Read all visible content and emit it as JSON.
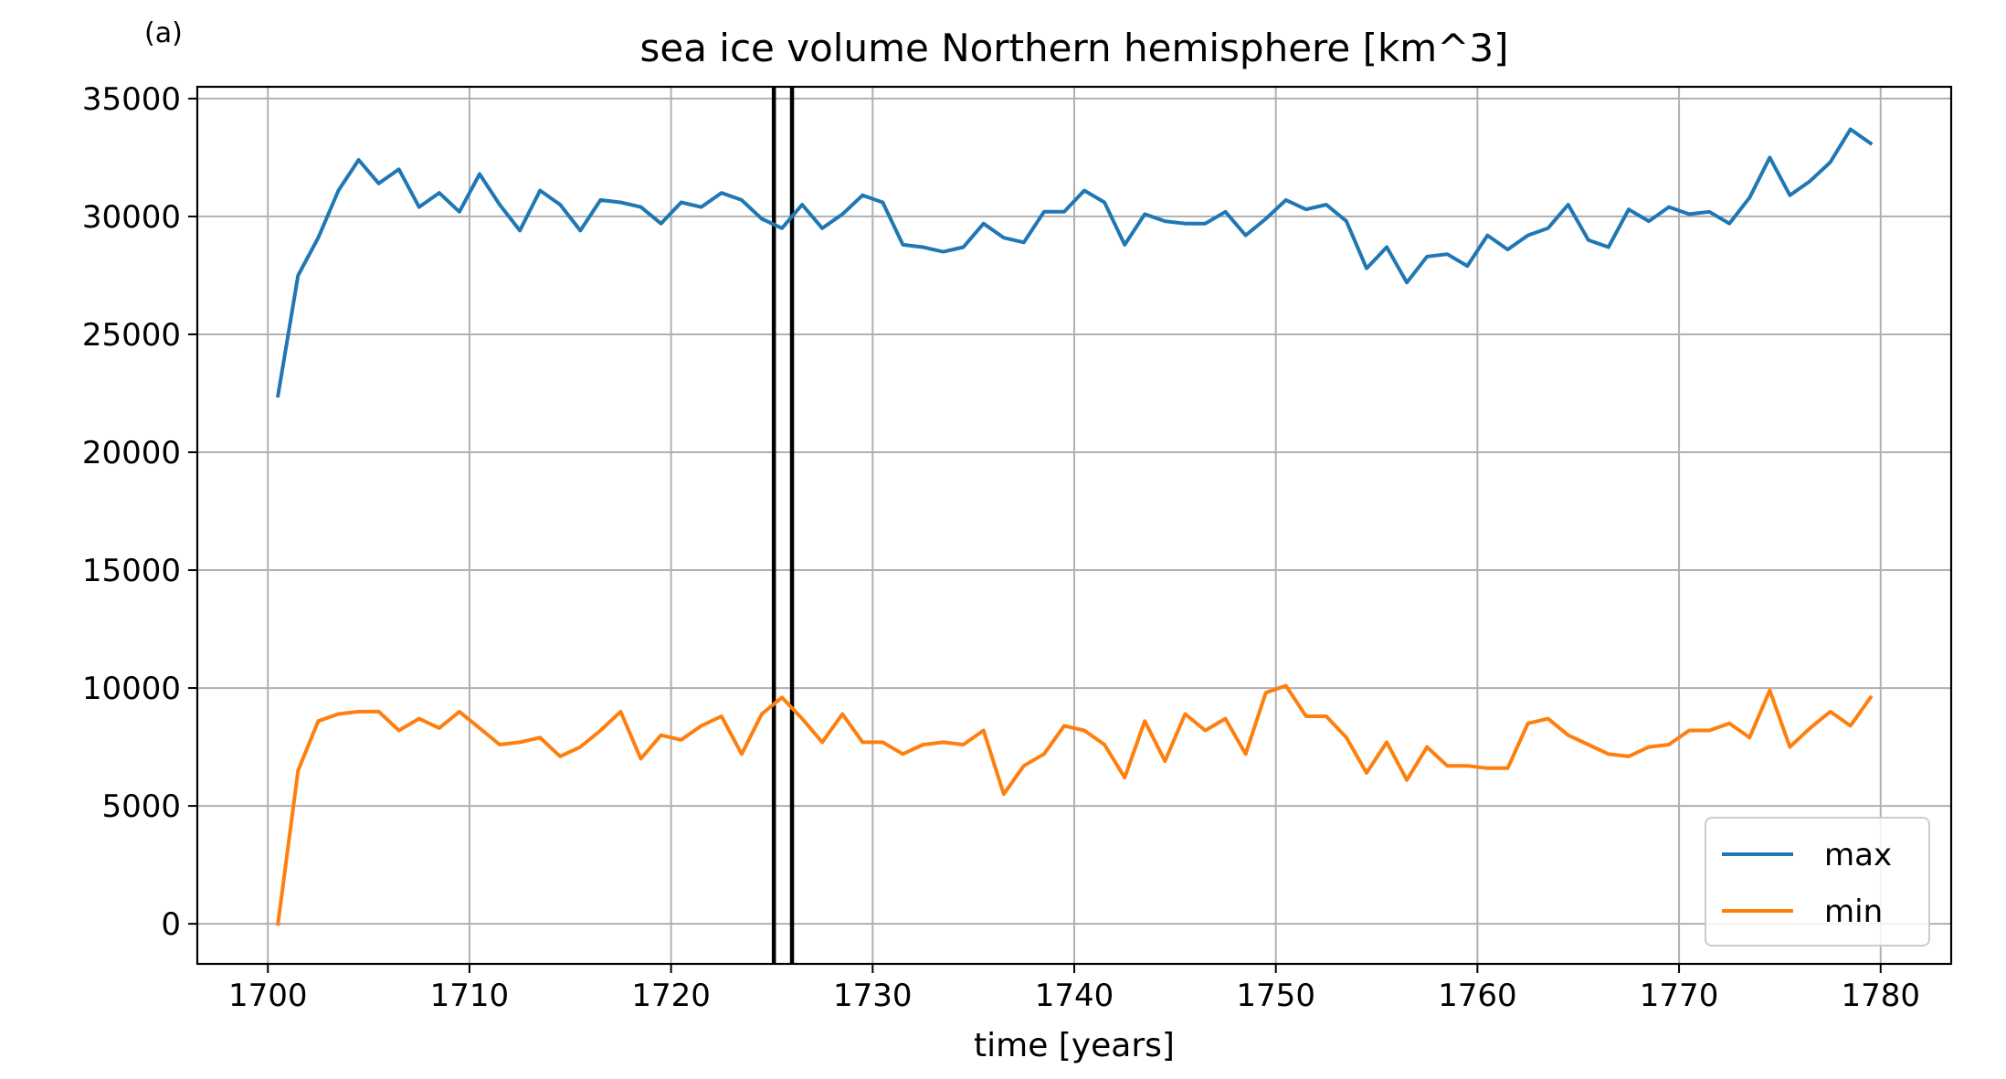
{
  "panel_label": "(a)",
  "chart_data": {
    "type": "line",
    "title": "sea ice volume Northern hemisphere [km^3]",
    "xlabel": "time [years]",
    "ylabel": "",
    "xlim": [
      1696.5,
      1783.5
    ],
    "ylim": [
      -1700,
      35500
    ],
    "xticks": [
      1700,
      1710,
      1720,
      1730,
      1740,
      1750,
      1760,
      1770,
      1780
    ],
    "yticks": [
      0,
      5000,
      10000,
      15000,
      20000,
      25000,
      30000,
      35000
    ],
    "grid": true,
    "legend_position": "lower-right",
    "vertical_lines": [
      1725.1,
      1726.0
    ],
    "x": [
      1700.5,
      1701.5,
      1702.5,
      1703.5,
      1704.5,
      1705.5,
      1706.5,
      1707.5,
      1708.5,
      1709.5,
      1710.5,
      1711.5,
      1712.5,
      1713.5,
      1714.5,
      1715.5,
      1716.5,
      1717.5,
      1718.5,
      1719.5,
      1720.5,
      1721.5,
      1722.5,
      1723.5,
      1724.5,
      1725.5,
      1726.5,
      1727.5,
      1728.5,
      1729.5,
      1730.5,
      1731.5,
      1732.5,
      1733.5,
      1734.5,
      1735.5,
      1736.5,
      1737.5,
      1738.5,
      1739.5,
      1740.5,
      1741.5,
      1742.5,
      1743.5,
      1744.5,
      1745.5,
      1746.5,
      1747.5,
      1748.5,
      1749.5,
      1750.5,
      1751.5,
      1752.5,
      1753.5,
      1754.5,
      1755.5,
      1756.5,
      1757.5,
      1758.5,
      1759.5,
      1760.5,
      1761.5,
      1762.5,
      1763.5,
      1764.5,
      1765.5,
      1766.5,
      1767.5,
      1768.5,
      1769.5,
      1770.5,
      1771.5,
      1772.5,
      1773.5,
      1774.5,
      1775.5,
      1776.5,
      1777.5,
      1778.5,
      1779.5
    ],
    "series": [
      {
        "name": "max",
        "color": "#1f77b4",
        "values": [
          22400,
          27500,
          29100,
          31100,
          32400,
          31400,
          32000,
          30400,
          31000,
          30200,
          31800,
          30500,
          29400,
          31100,
          30500,
          29400,
          30700,
          30600,
          30400,
          29700,
          30600,
          30400,
          31000,
          30700,
          29900,
          29500,
          30500,
          29500,
          30100,
          30900,
          30600,
          28800,
          28700,
          28500,
          28700,
          29700,
          29100,
          28900,
          30200,
          30200,
          31100,
          30600,
          28800,
          30100,
          29800,
          29700,
          29700,
          30200,
          29200,
          29900,
          30700,
          30300,
          30500,
          29800,
          27800,
          28700,
          27200,
          28300,
          28400,
          27900,
          29200,
          28600,
          29200,
          29500,
          30500,
          29000,
          28700,
          30300,
          29800,
          30400,
          30100,
          30200,
          29700,
          30800,
          32500,
          30900,
          31500,
          32300,
          33700,
          33100
        ]
      },
      {
        "name": "min",
        "color": "#ff7f0e",
        "values": [
          0,
          6500,
          8600,
          8900,
          9000,
          9000,
          8200,
          8700,
          8300,
          9000,
          8300,
          7600,
          7700,
          7900,
          7100,
          7500,
          8200,
          9000,
          7000,
          8000,
          7800,
          8400,
          8800,
          7200,
          8900,
          9600,
          8700,
          7700,
          8900,
          7700,
          7700,
          7200,
          7600,
          7700,
          7600,
          8200,
          5500,
          6700,
          7200,
          8400,
          8200,
          7600,
          6200,
          8600,
          6900,
          8900,
          8200,
          8700,
          7200,
          9800,
          10100,
          8800,
          8800,
          7900,
          6400,
          7700,
          6100,
          7500,
          6700,
          6700,
          6600,
          6600,
          8500,
          8700,
          8000,
          7600,
          7200,
          7100,
          7500,
          7600,
          8200,
          8200,
          8500,
          7900,
          9900,
          7500,
          8300,
          9000,
          8400,
          9600
        ]
      }
    ]
  }
}
